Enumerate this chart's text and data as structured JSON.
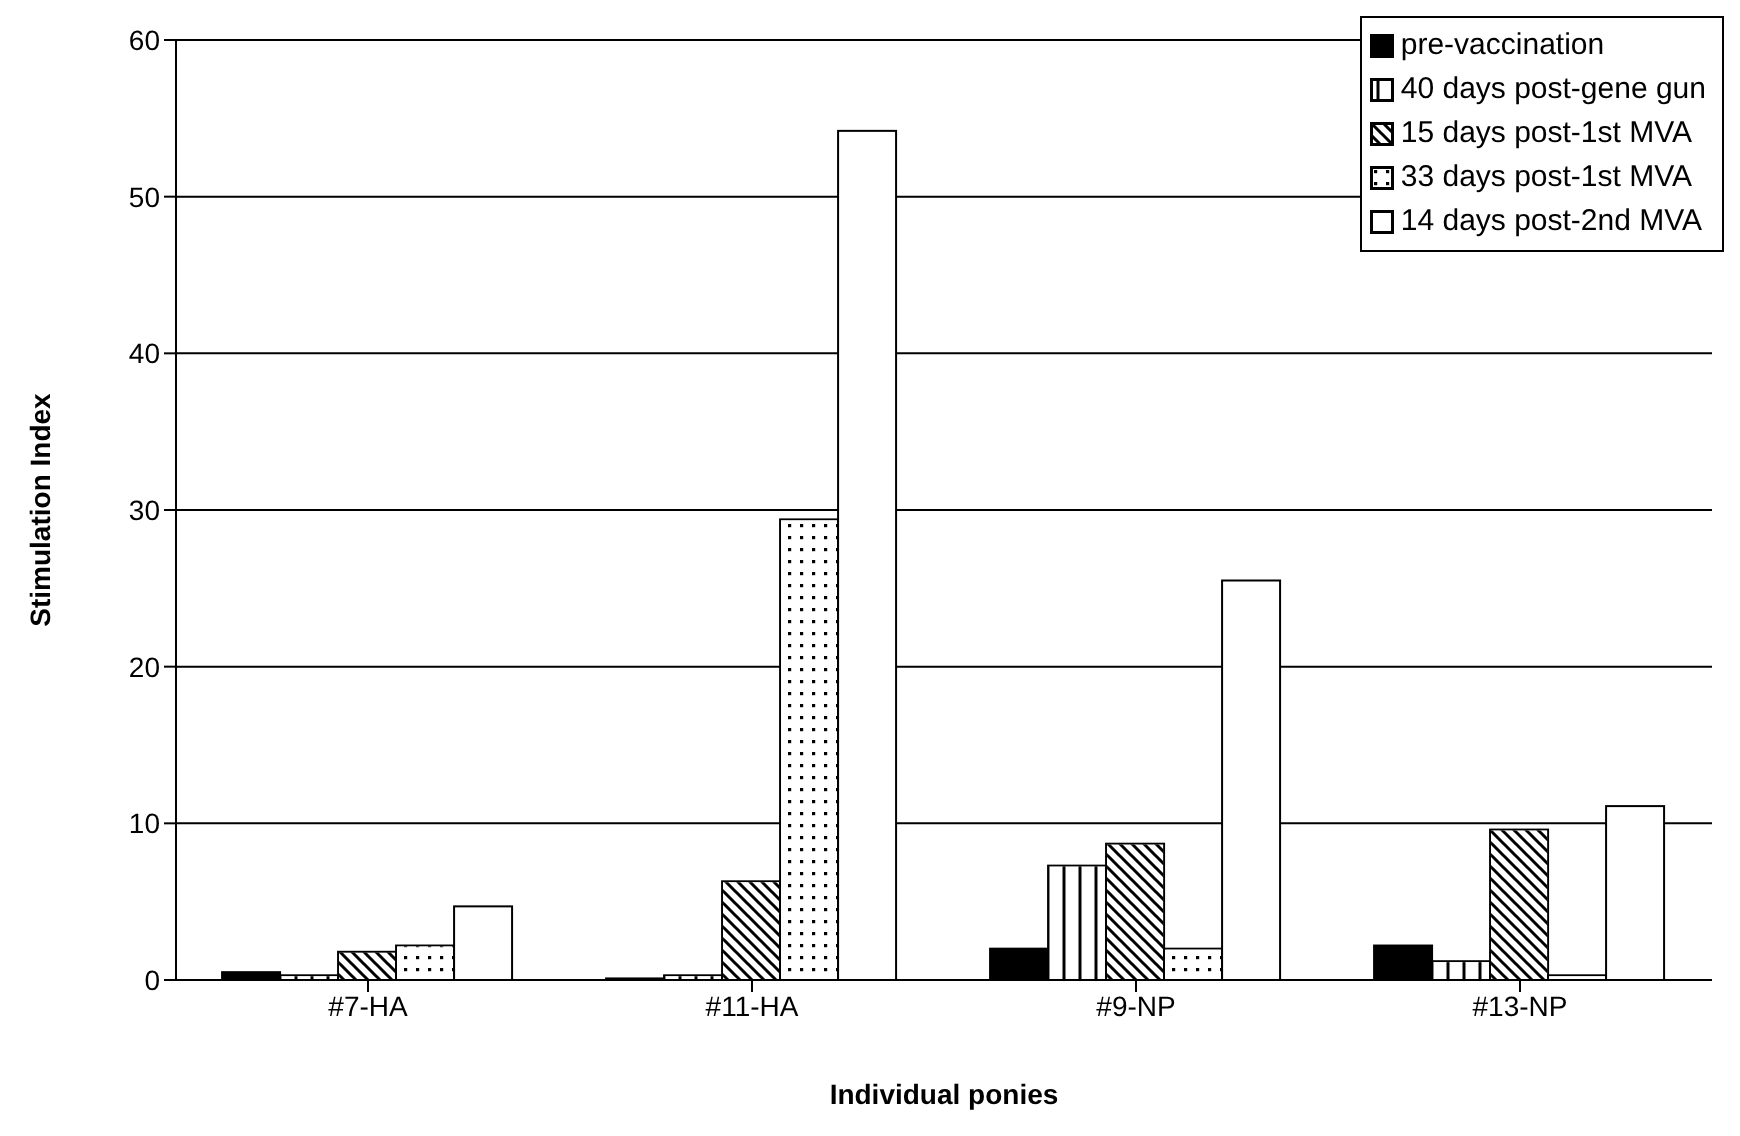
{
  "chart_data": {
    "type": "bar",
    "xlabel": "Individual ponies",
    "ylabel": "Stimulation Index",
    "categories": [
      "#7-HA",
      "#11-HA",
      "#9-NP",
      "#13-NP"
    ],
    "series": [
      {
        "name": "pre-vaccination",
        "color": "#000000",
        "values": [
          0.5,
          0.1,
          2.0,
          2.2
        ]
      },
      {
        "name": "40 days post-gene gun",
        "color": "#ffffff",
        "values": [
          0.3,
          0.3,
          7.3,
          1.2
        ]
      },
      {
        "name": "15 days post-1st MVA",
        "color": "#ffffff",
        "values": [
          1.8,
          6.3,
          8.7,
          9.6
        ]
      },
      {
        "name": "33 days post-1st MVA",
        "color": "#ffffff",
        "values": [
          2.2,
          29.4,
          2.0,
          0.3
        ]
      },
      {
        "name": "14 days post-2nd MVA",
        "color": "#ffffff",
        "values": [
          4.7,
          54.2,
          25.5,
          11.1
        ]
      }
    ],
    "ylim": [
      0,
      60
    ],
    "yticks": [
      0,
      10,
      20,
      30,
      40,
      50,
      60
    ],
    "grid": "y",
    "legend": "top right"
  }
}
